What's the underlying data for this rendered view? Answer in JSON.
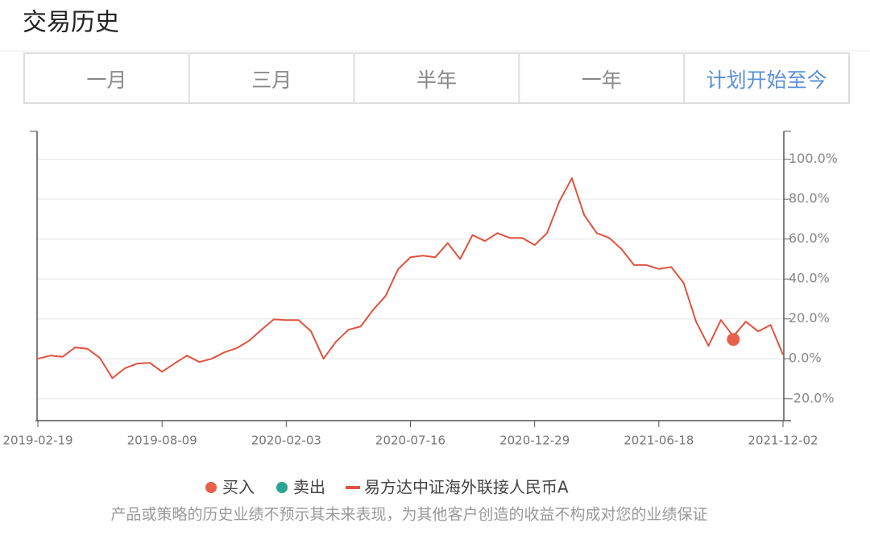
{
  "header": {
    "title": "交易历史"
  },
  "tabs": {
    "items": [
      "一月",
      "三月",
      "半年",
      "一年",
      "计划开始至今"
    ],
    "active": 4
  },
  "chart_data": {
    "type": "line",
    "categories": [
      "2019-02-19",
      null,
      null,
      null,
      null,
      null,
      null,
      null,
      null,
      null,
      "2019-08-09",
      null,
      null,
      null,
      null,
      null,
      null,
      null,
      null,
      null,
      "2020-02-03",
      null,
      null,
      null,
      null,
      null,
      null,
      null,
      null,
      null,
      "2020-07-16",
      null,
      null,
      null,
      null,
      null,
      null,
      null,
      null,
      null,
      "2020-12-29",
      null,
      null,
      null,
      null,
      null,
      null,
      null,
      null,
      null,
      "2021-06-18",
      null,
      null,
      null,
      null,
      null,
      null,
      null,
      null,
      null,
      "2021-12-02"
    ],
    "series": [
      {
        "name": "买入",
        "style": "dot",
        "color": "#e8604c",
        "values": [
          null,
          null,
          null,
          null,
          null,
          null,
          null,
          null,
          null,
          null,
          null,
          null,
          null,
          null,
          null,
          null,
          null,
          null,
          null,
          null,
          null,
          null,
          null,
          null,
          null,
          null,
          null,
          null,
          null,
          null,
          null,
          null,
          null,
          null,
          null,
          null,
          null,
          null,
          null,
          null,
          null,
          null,
          null,
          null,
          null,
          null,
          null,
          null,
          null,
          null,
          null,
          null,
          null,
          null,
          null,
          null,
          9.7,
          null,
          null,
          null,
          null
        ]
      },
      {
        "name": "卖出",
        "style": "dot",
        "color": "#2aa58f",
        "values": [
          null,
          null,
          null,
          null,
          null,
          null,
          null,
          null,
          null,
          null,
          null,
          null,
          null,
          null,
          null,
          null,
          null,
          null,
          null,
          null,
          null,
          null,
          null,
          null,
          null,
          null,
          null,
          null,
          null,
          null,
          null,
          null,
          null,
          null,
          null,
          null,
          null,
          null,
          null,
          null,
          null,
          null,
          null,
          null,
          null,
          null,
          null,
          null,
          null,
          null,
          null,
          null,
          null,
          null,
          null,
          null,
          null,
          null,
          null,
          null,
          null
        ]
      },
      {
        "name": "易方达中证海外联接人民币A",
        "style": "line",
        "color": "#e0533f",
        "values": [
          0,
          1.6,
          1,
          5.7,
          5,
          0.4,
          -9.7,
          -4.8,
          -2.4,
          -2,
          -6.5,
          -2.4,
          1.6,
          -1.6,
          0,
          3.2,
          5.3,
          9,
          14.5,
          19.8,
          19.4,
          19.4,
          13.7,
          0,
          8.5,
          14.5,
          16.2,
          24.6,
          31.5,
          44.8,
          50.9,
          51.7,
          50.9,
          58,
          50,
          62,
          59,
          63,
          60.6,
          60.6,
          57,
          63,
          79,
          90.5,
          72,
          63,
          60.6,
          55,
          47,
          47,
          45,
          46,
          38,
          18.6,
          6.5,
          19.4,
          11.3,
          18.6,
          13.7,
          17,
          2
        ]
      }
    ],
    "ylim": [
      -31,
      114
    ],
    "yticks": [
      {
        "value": -20,
        "label": "-20.0%"
      },
      {
        "value": 0,
        "label": "0.0%"
      },
      {
        "value": 20,
        "label": "20.0%"
      },
      {
        "value": 40,
        "label": "40.0%"
      },
      {
        "value": 60,
        "label": "60.0%"
      },
      {
        "value": 80,
        "label": "80.0%"
      },
      {
        "value": 100,
        "label": "100.0%"
      }
    ],
    "grid": true
  },
  "disclaimer": "产品或策略的历史业绩不预示其未来表现，为其他客户创造的收益不构成对您的业绩保证"
}
